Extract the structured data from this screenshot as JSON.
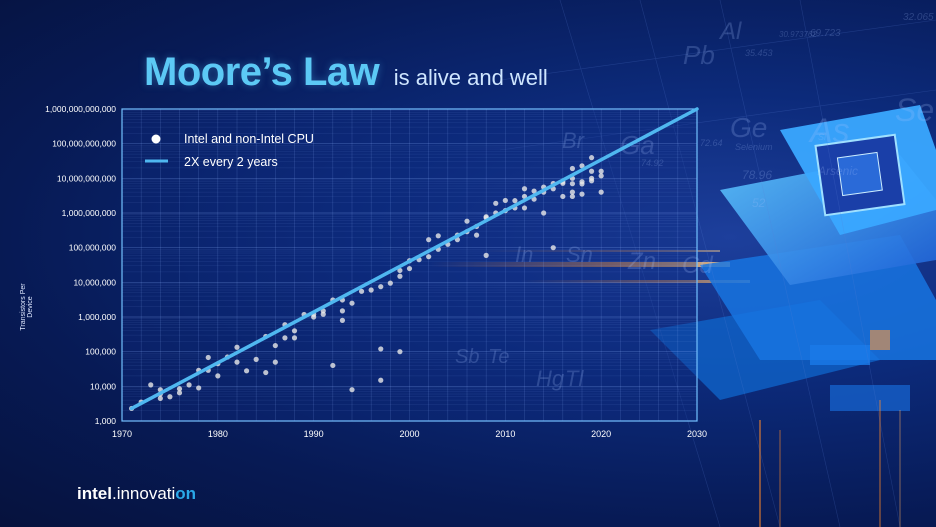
{
  "title": {
    "main": "Moore’s Law",
    "sub": "is alive and well"
  },
  "footer": {
    "brand": "intel",
    "dot": ".",
    "product_a": "innovati",
    "product_b": "on"
  },
  "background_text": [
    "Ga",
    "Ge",
    "As",
    "Se",
    "Br",
    "Zn",
    "Cd",
    "In",
    "Sn",
    "Sb",
    "Te",
    "Hg",
    "Tl",
    "Pb",
    "Al",
    "Si",
    "Selenium",
    "Arsenic",
    "78.96",
    "52",
    "74.92",
    "72.64",
    "69.723",
    "32.065",
    "35.453",
    "30.973762",
    "28.0855"
  ],
  "colors": {
    "accent": "#5cc9f5",
    "trend_line": "#4fb7f0",
    "points": "#e8e8e8",
    "background": "#0a2266"
  },
  "chart_data": {
    "type": "scatter",
    "ylabel": "Transistors Per Device",
    "xlim": [
      1970,
      2030
    ],
    "ylim": [
      1000,
      1000000000000
    ],
    "yscale": "log",
    "grid": true,
    "legend_position": "top-left",
    "x_ticks": [
      "1970",
      "1980",
      "1990",
      "2000",
      "2010",
      "2020",
      "2030"
    ],
    "y_ticks": [
      "1,000",
      "10,000",
      "100,000",
      "1,000,000",
      "10,000,000",
      "100,000,000",
      "1,000,000,000",
      "10,000,000,000",
      "100,000,000,000",
      "1,000,000,000,000"
    ],
    "series": [
      {
        "name": "Intel and non-Intel CPU",
        "kind": "points",
        "points": [
          [
            1971,
            2300
          ],
          [
            1972,
            3500
          ],
          [
            1973,
            11000
          ],
          [
            1974,
            4500
          ],
          [
            1974,
            6000
          ],
          [
            1974,
            8000
          ],
          [
            1975,
            5000
          ],
          [
            1976,
            6500
          ],
          [
            1976,
            8500
          ],
          [
            1977,
            11000
          ],
          [
            1978,
            9000
          ],
          [
            1978,
            29000
          ],
          [
            1979,
            29000
          ],
          [
            1979,
            68000
          ],
          [
            1980,
            20000
          ],
          [
            1980,
            45000
          ],
          [
            1981,
            70000
          ],
          [
            1982,
            50000
          ],
          [
            1982,
            134000
          ],
          [
            1983,
            28000
          ],
          [
            1984,
            60000
          ],
          [
            1985,
            275000
          ],
          [
            1985,
            25000
          ],
          [
            1986,
            150000
          ],
          [
            1986,
            50000
          ],
          [
            1987,
            250000
          ],
          [
            1987,
            600000
          ],
          [
            1988,
            250000
          ],
          [
            1988,
            400000
          ],
          [
            1989,
            1180000
          ],
          [
            1990,
            1200000
          ],
          [
            1990,
            1000000
          ],
          [
            1991,
            1200000
          ],
          [
            1991,
            1500000
          ],
          [
            1992,
            3100000
          ],
          [
            1992,
            40000
          ],
          [
            1993,
            3100000
          ],
          [
            1993,
            1500000
          ],
          [
            1993,
            800000
          ],
          [
            1994,
            2500000
          ],
          [
            1994,
            8000
          ],
          [
            1995,
            5500000
          ],
          [
            1996,
            6000000
          ],
          [
            1997,
            7500000
          ],
          [
            1997,
            15000
          ],
          [
            1997,
            120000
          ],
          [
            1998,
            9500000
          ],
          [
            1999,
            15000000
          ],
          [
            1999,
            22000000
          ],
          [
            1999,
            100000
          ],
          [
            2000,
            42000000
          ],
          [
            2000,
            25000000
          ],
          [
            2001,
            45000000
          ],
          [
            2002,
            55000000
          ],
          [
            2002,
            170000000
          ],
          [
            2003,
            220000000
          ],
          [
            2003,
            90000000
          ],
          [
            2004,
            125000000
          ],
          [
            2005,
            230000000
          ],
          [
            2005,
            170000000
          ],
          [
            2006,
            290000000
          ],
          [
            2006,
            580000000
          ],
          [
            2007,
            410000000
          ],
          [
            2007,
            230000000
          ],
          [
            2008,
            730000000
          ],
          [
            2008,
            780000000
          ],
          [
            2008,
            60000000
          ],
          [
            2009,
            1000000000
          ],
          [
            2009,
            1900000000
          ],
          [
            2010,
            1170000000
          ],
          [
            2010,
            2300000000
          ],
          [
            2011,
            2270000000
          ],
          [
            2011,
            1400000000
          ],
          [
            2012,
            1400000000
          ],
          [
            2012,
            3000000000
          ],
          [
            2012,
            5000000000
          ],
          [
            2013,
            2500000000
          ],
          [
            2013,
            4300000000
          ],
          [
            2014,
            4000000000
          ],
          [
            2014,
            5600000000
          ],
          [
            2014,
            1000000000
          ],
          [
            2015,
            7100000000
          ],
          [
            2015,
            5000000000
          ],
          [
            2015,
            100000000
          ],
          [
            2016,
            7200000000
          ],
          [
            2016,
            8000000000
          ],
          [
            2016,
            3000000000
          ],
          [
            2017,
            10000000000
          ],
          [
            2017,
            19200000000
          ],
          [
            2017,
            7000000000
          ],
          [
            2017,
            3000000000
          ],
          [
            2017,
            4000000000
          ],
          [
            2018,
            8000000000
          ],
          [
            2018,
            6900000000
          ],
          [
            2018,
            23000000000
          ],
          [
            2018,
            3500000000
          ],
          [
            2019,
            39500000000
          ],
          [
            2019,
            8500000000
          ],
          [
            2019,
            10000000000
          ],
          [
            2019,
            16000000000
          ],
          [
            2020,
            16000000000
          ],
          [
            2020,
            11800000000
          ],
          [
            2020,
            4000000000
          ]
        ]
      },
      {
        "name": "2X every 2 years",
        "kind": "trend",
        "points": [
          [
            1971,
            2300
          ],
          [
            2030,
            1000000000000
          ]
        ]
      }
    ]
  }
}
